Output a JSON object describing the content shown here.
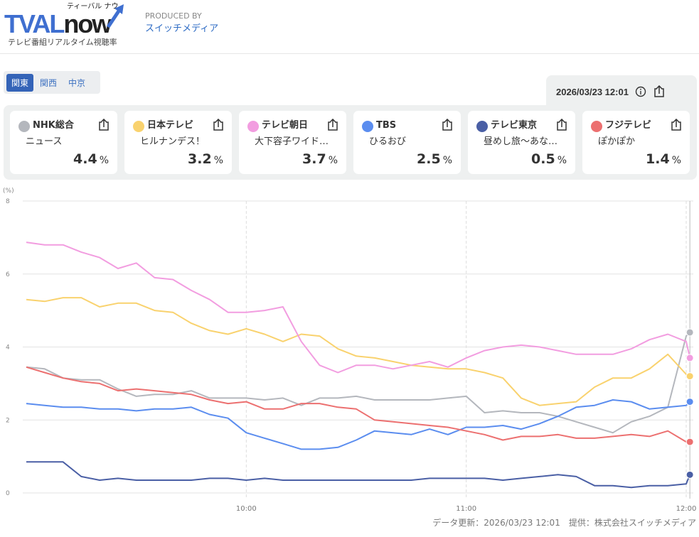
{
  "header": {
    "logo_text": "TVAL",
    "logo_now": "now",
    "logo_ruby": "ティーバル ナウ",
    "logo_sub": "テレビ番組リアルタイム視聴率",
    "produced_by": "PRODUCED BY",
    "producer": "スイッチメディア"
  },
  "regions": [
    {
      "label": "関東",
      "active": true
    },
    {
      "label": "関西",
      "active": false
    },
    {
      "label": "中京",
      "active": false
    }
  ],
  "datetime": "2026/03/23 12:01",
  "channels": [
    {
      "name": "NHK総合",
      "program": "ニュース",
      "rating": "4.4",
      "unit": "%",
      "color": "#b4b7bd"
    },
    {
      "name": "日本テレビ",
      "program": "ヒルナンデス！",
      "rating": "3.2",
      "unit": "%",
      "color": "#f9d26e"
    },
    {
      "name": "テレビ朝日",
      "program": "大下容子ワイド…",
      "rating": "3.7",
      "unit": "%",
      "color": "#f29de0"
    },
    {
      "name": "TBS",
      "program": "ひるおび",
      "rating": "2.5",
      "unit": "%",
      "color": "#5b8def"
    },
    {
      "name": "テレビ東京",
      "program": "昼めし旅〜あな…",
      "rating": "0.5",
      "unit": "%",
      "color": "#4a5fa5"
    },
    {
      "name": "フジテレビ",
      "program": "ぽかぽか",
      "rating": "1.4",
      "unit": "%",
      "color": "#ec7070"
    }
  ],
  "chart_data": {
    "type": "line",
    "ylabel": "(%)",
    "ylim": [
      0,
      8
    ],
    "yticks": [
      "0",
      "2",
      "4",
      "6",
      "8"
    ],
    "xticks": [
      "10:00",
      "11:00",
      "12:00"
    ],
    "grid": true,
    "x": [
      "9:00",
      "9:05",
      "9:10",
      "9:15",
      "9:20",
      "9:25",
      "9:30",
      "9:35",
      "9:40",
      "9:45",
      "9:50",
      "9:55",
      "10:00",
      "10:05",
      "10:10",
      "10:15",
      "10:20",
      "10:25",
      "10:30",
      "10:35",
      "10:40",
      "10:45",
      "10:50",
      "10:55",
      "11:00",
      "11:05",
      "11:10",
      "11:15",
      "11:20",
      "11:25",
      "11:30",
      "11:35",
      "11:40",
      "11:45",
      "11:50",
      "11:55",
      "12:00",
      "12:01"
    ],
    "series": [
      {
        "name": "NHK総合",
        "color": "#b4b7bd",
        "values": [
          3.45,
          3.4,
          3.15,
          3.1,
          3.1,
          2.85,
          2.65,
          2.7,
          2.7,
          2.8,
          2.6,
          2.6,
          2.6,
          2.55,
          2.6,
          2.4,
          2.6,
          2.6,
          2.65,
          2.55,
          2.55,
          2.55,
          2.55,
          2.6,
          2.65,
          2.2,
          2.25,
          2.2,
          2.2,
          2.1,
          1.95,
          1.8,
          1.65,
          1.95,
          2.1,
          2.35,
          4.3,
          4.4
        ]
      },
      {
        "name": "日本テレビ",
        "color": "#f9d26e",
        "values": [
          5.3,
          5.25,
          5.35,
          5.35,
          5.1,
          5.2,
          5.2,
          5.0,
          4.95,
          4.65,
          4.45,
          4.35,
          4.5,
          4.35,
          4.15,
          4.35,
          4.3,
          3.95,
          3.75,
          3.7,
          3.6,
          3.5,
          3.45,
          3.4,
          3.4,
          3.3,
          3.15,
          2.6,
          2.4,
          2.45,
          2.5,
          2.9,
          3.15,
          3.15,
          3.4,
          3.8,
          3.25,
          3.2
        ]
      },
      {
        "name": "テレビ朝日",
        "color": "#f29de0",
        "values": [
          6.87,
          6.8,
          6.8,
          6.6,
          6.45,
          6.15,
          6.3,
          5.9,
          5.85,
          5.55,
          5.3,
          4.95,
          4.95,
          5.0,
          5.1,
          4.15,
          3.5,
          3.3,
          3.5,
          3.5,
          3.4,
          3.5,
          3.6,
          3.45,
          3.7,
          3.9,
          4.0,
          4.05,
          4.0,
          3.9,
          3.8,
          3.8,
          3.8,
          3.95,
          4.2,
          4.35,
          4.15,
          3.7
        ]
      },
      {
        "name": "TBS",
        "color": "#5b8def",
        "values": [
          2.45,
          2.4,
          2.35,
          2.35,
          2.3,
          2.3,
          2.25,
          2.3,
          2.3,
          2.35,
          2.15,
          2.05,
          1.65,
          1.5,
          1.35,
          1.2,
          1.2,
          1.25,
          1.45,
          1.7,
          1.65,
          1.6,
          1.75,
          1.6,
          1.8,
          1.8,
          1.85,
          1.75,
          1.9,
          2.1,
          2.35,
          2.4,
          2.55,
          2.5,
          2.3,
          2.35,
          2.4,
          2.5
        ]
      },
      {
        "name": "テレビ東京",
        "color": "#4a5fa5",
        "values": [
          0.85,
          0.85,
          0.85,
          0.45,
          0.35,
          0.4,
          0.35,
          0.35,
          0.35,
          0.35,
          0.4,
          0.4,
          0.35,
          0.4,
          0.35,
          0.35,
          0.35,
          0.35,
          0.35,
          0.35,
          0.35,
          0.35,
          0.4,
          0.4,
          0.4,
          0.4,
          0.35,
          0.4,
          0.45,
          0.5,
          0.45,
          0.2,
          0.2,
          0.15,
          0.2,
          0.2,
          0.25,
          0.5
        ]
      },
      {
        "name": "フジテレビ",
        "color": "#ec7070",
        "values": [
          3.45,
          3.3,
          3.15,
          3.05,
          3.0,
          2.8,
          2.85,
          2.8,
          2.75,
          2.7,
          2.55,
          2.45,
          2.5,
          2.3,
          2.3,
          2.45,
          2.45,
          2.35,
          2.3,
          2.0,
          1.95,
          1.9,
          1.85,
          1.8,
          1.7,
          1.6,
          1.45,
          1.55,
          1.55,
          1.6,
          1.5,
          1.5,
          1.55,
          1.6,
          1.55,
          1.7,
          1.4,
          1.4
        ]
      }
    ]
  },
  "footer": "データ更新：2026/03/23 12:01　提供：株式会社スイッチメディア"
}
